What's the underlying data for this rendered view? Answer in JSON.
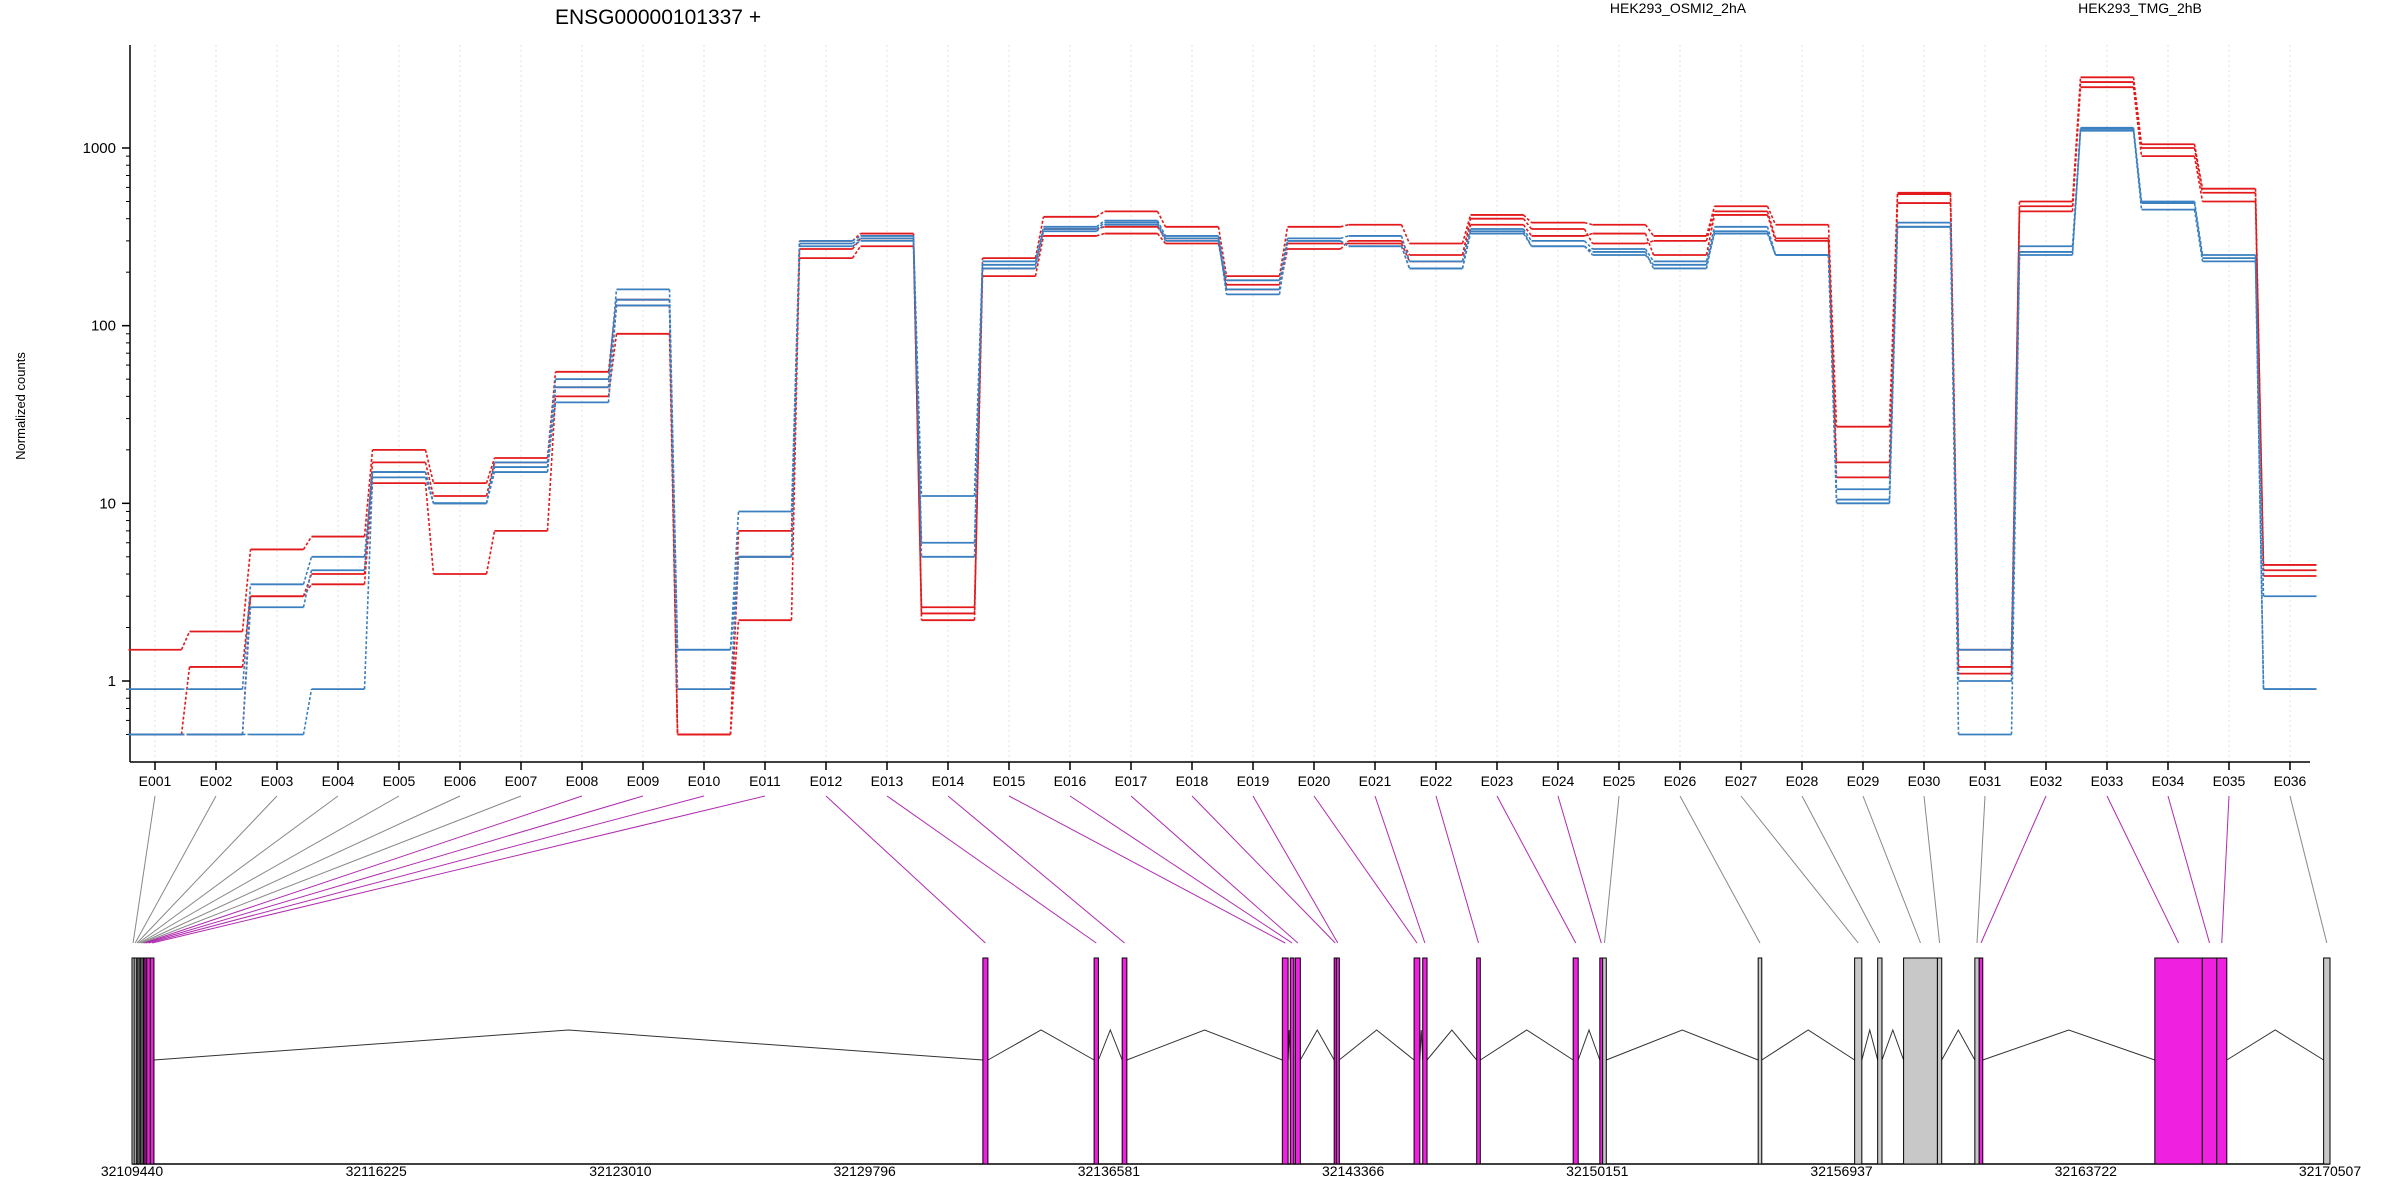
{
  "chart_data": {
    "type": "line",
    "title": "ENSG00000101337 +",
    "ylabel": "Normalized counts",
    "xlabel": "",
    "yscale": "log",
    "ylim": [
      0.5,
      3500
    ],
    "yticks": [
      1,
      10,
      100,
      1000
    ],
    "ytick_labels": [
      "1",
      "10",
      "100",
      "1000"
    ],
    "grid": true,
    "legend_placement": "top",
    "colors": {
      "HEK293_OSMI2_2hA": "#e31a1c",
      "HEK293_TMG_2hB": "#3a7fbf",
      "exon_enriched": "#f020e0",
      "exon_neutral": "#c8c8c8"
    },
    "categories": [
      "E001",
      "E002",
      "E003",
      "E004",
      "E005",
      "E006",
      "E007",
      "E008",
      "E009",
      "E010",
      "E011",
      "E012",
      "E013",
      "E014",
      "E015",
      "E016",
      "E017",
      "E018",
      "E019",
      "E020",
      "E021",
      "E022",
      "E023",
      "E024",
      "E025",
      "E026",
      "E027",
      "E028",
      "E029",
      "E030",
      "E031",
      "E032",
      "E033",
      "E034",
      "E035",
      "E036"
    ],
    "series": [
      {
        "name": "HEK293_OSMI2_2hA",
        "group": "HEK293_OSMI2_2hA",
        "values": [
          1.5,
          1.9,
          5.5,
          6.5,
          20,
          13,
          18,
          55,
          140,
          0.5,
          5,
          300,
          330,
          2.2,
          240,
          410,
          440,
          360,
          190,
          360,
          370,
          290,
          420,
          380,
          370,
          320,
          470,
          370,
          27,
          560,
          1.5,
          500,
          2500,
          1050,
          590,
          4.2
        ]
      },
      {
        "name": "HEK293_OSMI2_2hA",
        "group": "HEK293_OSMI2_2hA",
        "values": [
          0.5,
          1.2,
          3,
          4,
          17,
          11,
          17,
          45,
          130,
          0.5,
          7,
          240,
          280,
          2.4,
          190,
          320,
          330,
          290,
          170,
          290,
          290,
          230,
          370,
          320,
          330,
          250,
          420,
          300,
          14,
          490,
          1.1,
          440,
          2200,
          900,
          500,
          4.5
        ]
      },
      {
        "name": "HEK293_OSMI2_2hA",
        "group": "HEK293_OSMI2_2hA",
        "values": [
          0.5,
          0.5,
          3,
          3.5,
          13,
          4,
          7,
          40,
          90,
          0.5,
          2.2,
          270,
          310,
          2.6,
          210,
          350,
          360,
          310,
          160,
          270,
          300,
          250,
          400,
          350,
          290,
          300,
          440,
          310,
          17,
          550,
          1.2,
          470,
          2350,
          1000,
          560,
          3.9
        ]
      },
      {
        "name": "HEK293_TMG_2hB",
        "group": "HEK293_TMG_2hB",
        "values": [
          0.9,
          0.9,
          3.5,
          5,
          15,
          10,
          17,
          50,
          160,
          1.5,
          9,
          300,
          320,
          11,
          230,
          360,
          390,
          320,
          180,
          310,
          320,
          230,
          350,
          300,
          270,
          230,
          360,
          250,
          12,
          380,
          1.5,
          280,
          1300,
          500,
          250,
          0.9
        ]
      },
      {
        "name": "HEK293_TMG_2hB",
        "group": "HEK293_TMG_2hB",
        "values": [
          0.5,
          0.5,
          2.6,
          4.2,
          15,
          10,
          15,
          45,
          140,
          0.9,
          5,
          280,
          300,
          6,
          220,
          340,
          370,
          300,
          160,
          300,
          280,
          210,
          330,
          280,
          260,
          210,
          340,
          250,
          10,
          360,
          0.5,
          250,
          1250,
          450,
          230,
          0.9
        ]
      },
      {
        "name": "HEK293_TMG_2hB",
        "group": "HEK293_TMG_2hB",
        "values": [
          0.5,
          0.5,
          0.5,
          0.9,
          14,
          10,
          16,
          37,
          130,
          1.5,
          5,
          290,
          310,
          5,
          210,
          350,
          380,
          310,
          150,
          300,
          280,
          210,
          340,
          280,
          250,
          220,
          330,
          250,
          10.5,
          360,
          1,
          260,
          1280,
          490,
          240,
          3
        ]
      }
    ],
    "exon_map": {
      "coordinate_labels": [
        "32109440",
        "32116225",
        "32123010",
        "32129796",
        "32136581",
        "32143366",
        "32150151",
        "32156937",
        "32163722",
        "32170507"
      ],
      "exons": [
        {
          "id": "E001",
          "start": 32109440,
          "end": 32109500,
          "enriched": false
        },
        {
          "id": "E002",
          "start": 32109500,
          "end": 32109560,
          "enriched": false
        },
        {
          "id": "E003",
          "start": 32109560,
          "end": 32109600,
          "enriched": false
        },
        {
          "id": "E004",
          "start": 32109600,
          "end": 32109640,
          "enriched": false
        },
        {
          "id": "E005",
          "start": 32109640,
          "end": 32109680,
          "enriched": false
        },
        {
          "id": "E006",
          "start": 32109680,
          "end": 32109720,
          "enriched": false
        },
        {
          "id": "E007",
          "start": 32109720,
          "end": 32109760,
          "enriched": false
        },
        {
          "id": "E008",
          "start": 32109760,
          "end": 32109800,
          "enriched": true
        },
        {
          "id": "E009",
          "start": 32109800,
          "end": 32109850,
          "enriched": true
        },
        {
          "id": "E010",
          "start": 32109850,
          "end": 32109950,
          "enriched": true
        },
        {
          "id": "E011",
          "start": 32109950,
          "end": 32110050,
          "enriched": true
        },
        {
          "id": "E012",
          "start": 32133080,
          "end": 32133220,
          "enriched": true
        },
        {
          "id": "E013",
          "start": 32136170,
          "end": 32136290,
          "enriched": true
        },
        {
          "id": "E014",
          "start": 32136950,
          "end": 32137080,
          "enriched": true
        },
        {
          "id": "E015",
          "start": 32141400,
          "end": 32141560,
          "enriched": true
        },
        {
          "id": "E016",
          "start": 32141620,
          "end": 32141720,
          "enriched": true
        },
        {
          "id": "E017",
          "start": 32141760,
          "end": 32141900,
          "enriched": true
        },
        {
          "id": "E018",
          "start": 32142840,
          "end": 32142900,
          "enriched": true
        },
        {
          "id": "E019",
          "start": 32142900,
          "end": 32142980,
          "enriched": true
        },
        {
          "id": "E020",
          "start": 32145060,
          "end": 32145220,
          "enriched": true
        },
        {
          "id": "E021",
          "start": 32145300,
          "end": 32145420,
          "enriched": true
        },
        {
          "id": "E022",
          "start": 32146800,
          "end": 32146900,
          "enriched": true
        },
        {
          "id": "E023",
          "start": 32149480,
          "end": 32149620,
          "enriched": true
        },
        {
          "id": "E024",
          "start": 32150220,
          "end": 32150300,
          "enriched": true
        },
        {
          "id": "E025",
          "start": 32150300,
          "end": 32150400,
          "enriched": false
        },
        {
          "id": "E026",
          "start": 32154620,
          "end": 32154720,
          "enriched": false
        },
        {
          "id": "E027",
          "start": 32157300,
          "end": 32157500,
          "enriched": false
        },
        {
          "id": "E028",
          "start": 32157940,
          "end": 32158060,
          "enriched": false
        },
        {
          "id": "E029",
          "start": 32158660,
          "end": 32159600,
          "enriched": false
        },
        {
          "id": "E030",
          "start": 32159600,
          "end": 32159720,
          "enriched": false
        },
        {
          "id": "E031",
          "start": 32160640,
          "end": 32160760,
          "enriched": false
        },
        {
          "id": "E032",
          "start": 32160760,
          "end": 32160860,
          "enriched": true
        },
        {
          "id": "E033",
          "start": 32165640,
          "end": 32166960,
          "enriched": true
        },
        {
          "id": "E034",
          "start": 32166960,
          "end": 32167360,
          "enriched": true
        },
        {
          "id": "E035",
          "start": 32167360,
          "end": 32167640,
          "enriched": true
        },
        {
          "id": "E036",
          "start": 32170330,
          "end": 32170507,
          "enriched": false
        }
      ]
    }
  }
}
